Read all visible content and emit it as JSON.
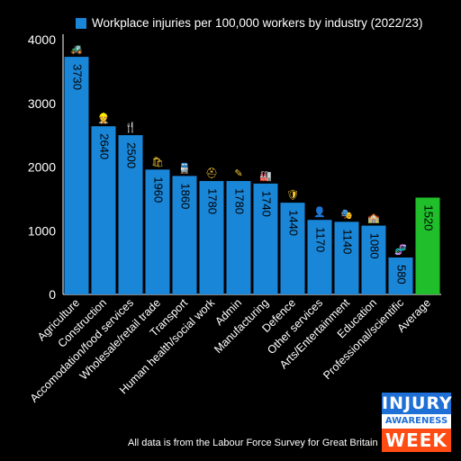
{
  "legend_label": "Workplace injuries per 100,000 workers by industry (2022/23)",
  "footer": "All data is from the Labour Force Survey for Great Britain",
  "badge": {
    "line1": "INJURY",
    "line2": "AWARENESS",
    "line3": "WEEK"
  },
  "colors": {
    "bar": "#1a86d8",
    "average": "#1fbe2a",
    "background": "#000000",
    "axis": "#ffffff"
  },
  "chart_data": {
    "type": "bar",
    "title": "",
    "xlabel": "",
    "ylabel": "",
    "ylim": [
      0,
      4000
    ],
    "yticks": [
      0,
      1000,
      2000,
      3000,
      4000
    ],
    "grid": false,
    "legend_placement": "top",
    "series": [
      {
        "name": "Workplace injuries per 100,000 workers by industry (2022/23)",
        "values": [
          3730,
          2640,
          2500,
          1960,
          1860,
          1780,
          1780,
          1740,
          1440,
          1170,
          1140,
          1080,
          580,
          1520
        ]
      }
    ],
    "categories": [
      "Agriculture",
      "Construction",
      "Accomodation/food services",
      "Wholesale/retail trade",
      "Transport",
      "Human health/social work",
      "Admin",
      "Manufacturing",
      "Defence",
      "Other services",
      "Arts/Entertainment",
      "Education",
      "Professional/scientific",
      "Average"
    ],
    "icons": [
      "tractor-icon",
      "worker-helmet-icon",
      "cutlery-icon",
      "shopping-bags-icon",
      "train-icon",
      "hard-hat-icon",
      "pencil-icon",
      "factory-icon",
      "shield-icon",
      "office-worker-icon",
      "theatre-masks-icon",
      "school-icon",
      "dna-icon",
      ""
    ]
  }
}
